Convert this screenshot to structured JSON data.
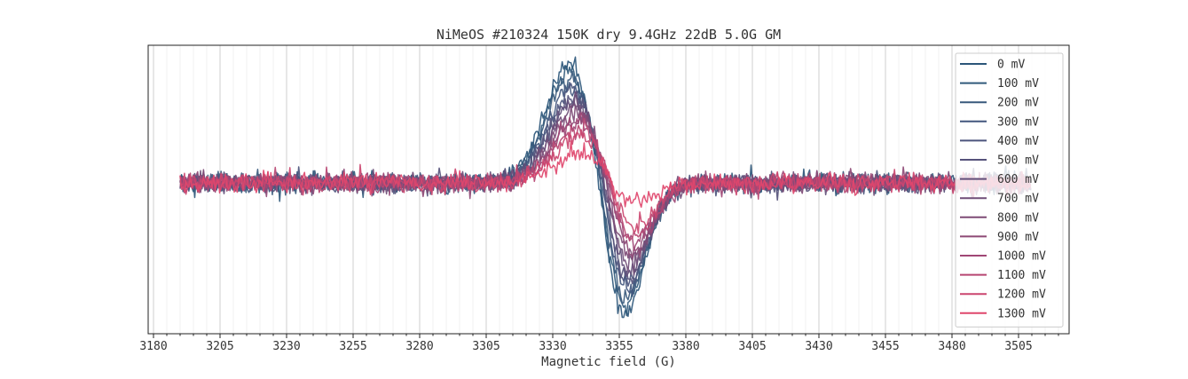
{
  "chart_data": {
    "type": "line",
    "title": "NiMeOS #210324 150K dry 9.4GHz 22dB 5.0G GM",
    "xlabel": "Magnetic field (G)",
    "ylabel": "",
    "xlim": [
      3178,
      3524
    ],
    "ylim": [
      -1.15,
      1.05
    ],
    "x_ticks": [
      3180,
      3205,
      3230,
      3255,
      3280,
      3305,
      3330,
      3355,
      3380,
      3405,
      3430,
      3455,
      3480,
      3505
    ],
    "x_tick_labels": [
      "3180",
      "3205",
      "3230",
      "3255",
      "3280",
      "3305",
      "3330",
      "3355",
      "3380",
      "3405",
      "3430",
      "3455",
      "3480",
      "3505"
    ],
    "x_range_data": [
      3190,
      3510
    ],
    "y_ticks_visible": false,
    "grid": "vertical major and minor",
    "legend_position": "top-right",
    "series": [
      {
        "name": "0 mV",
        "color": "#2b5679",
        "peak_pos": 0.92,
        "peak_neg": -1.0
      },
      {
        "name": "100 mV",
        "color": "#315a7b",
        "peak_pos": 0.85,
        "peak_neg": -0.93
      },
      {
        "name": "200 mV",
        "color": "#38597c",
        "peak_pos": 0.8,
        "peak_neg": -0.87
      },
      {
        "name": "300 mV",
        "color": "#42577e",
        "peak_pos": 0.74,
        "peak_neg": -0.81
      },
      {
        "name": "400 mV",
        "color": "#4c557d",
        "peak_pos": 0.7,
        "peak_neg": -0.76
      },
      {
        "name": "500 mV",
        "color": "#56527b",
        "peak_pos": 0.66,
        "peak_neg": -0.71
      },
      {
        "name": "600 mV",
        "color": "#634f7a",
        "peak_pos": 0.62,
        "peak_neg": -0.66
      },
      {
        "name": "700 mV",
        "color": "#704e78",
        "peak_pos": 0.58,
        "peak_neg": -0.61
      },
      {
        "name": "800 mV",
        "color": "#7e4b76",
        "peak_pos": 0.54,
        "peak_neg": -0.56
      },
      {
        "name": "900 mV",
        "color": "#8e4975",
        "peak_pos": 0.5,
        "peak_neg": -0.51
      },
      {
        "name": "1000 mV",
        "color": "#a04775",
        "peak_pos": 0.46,
        "peak_neg": -0.46
      },
      {
        "name": "1100 mV",
        "color": "#b74672",
        "peak_pos": 0.42,
        "peak_neg": -0.41
      },
      {
        "name": "1200 mV",
        "color": "#cb456f",
        "peak_pos": 0.38,
        "peak_neg": -0.34
      },
      {
        "name": "1300 mV",
        "color": "#df466c",
        "peak_pos": 0.24,
        "peak_neg": -0.14
      }
    ]
  }
}
